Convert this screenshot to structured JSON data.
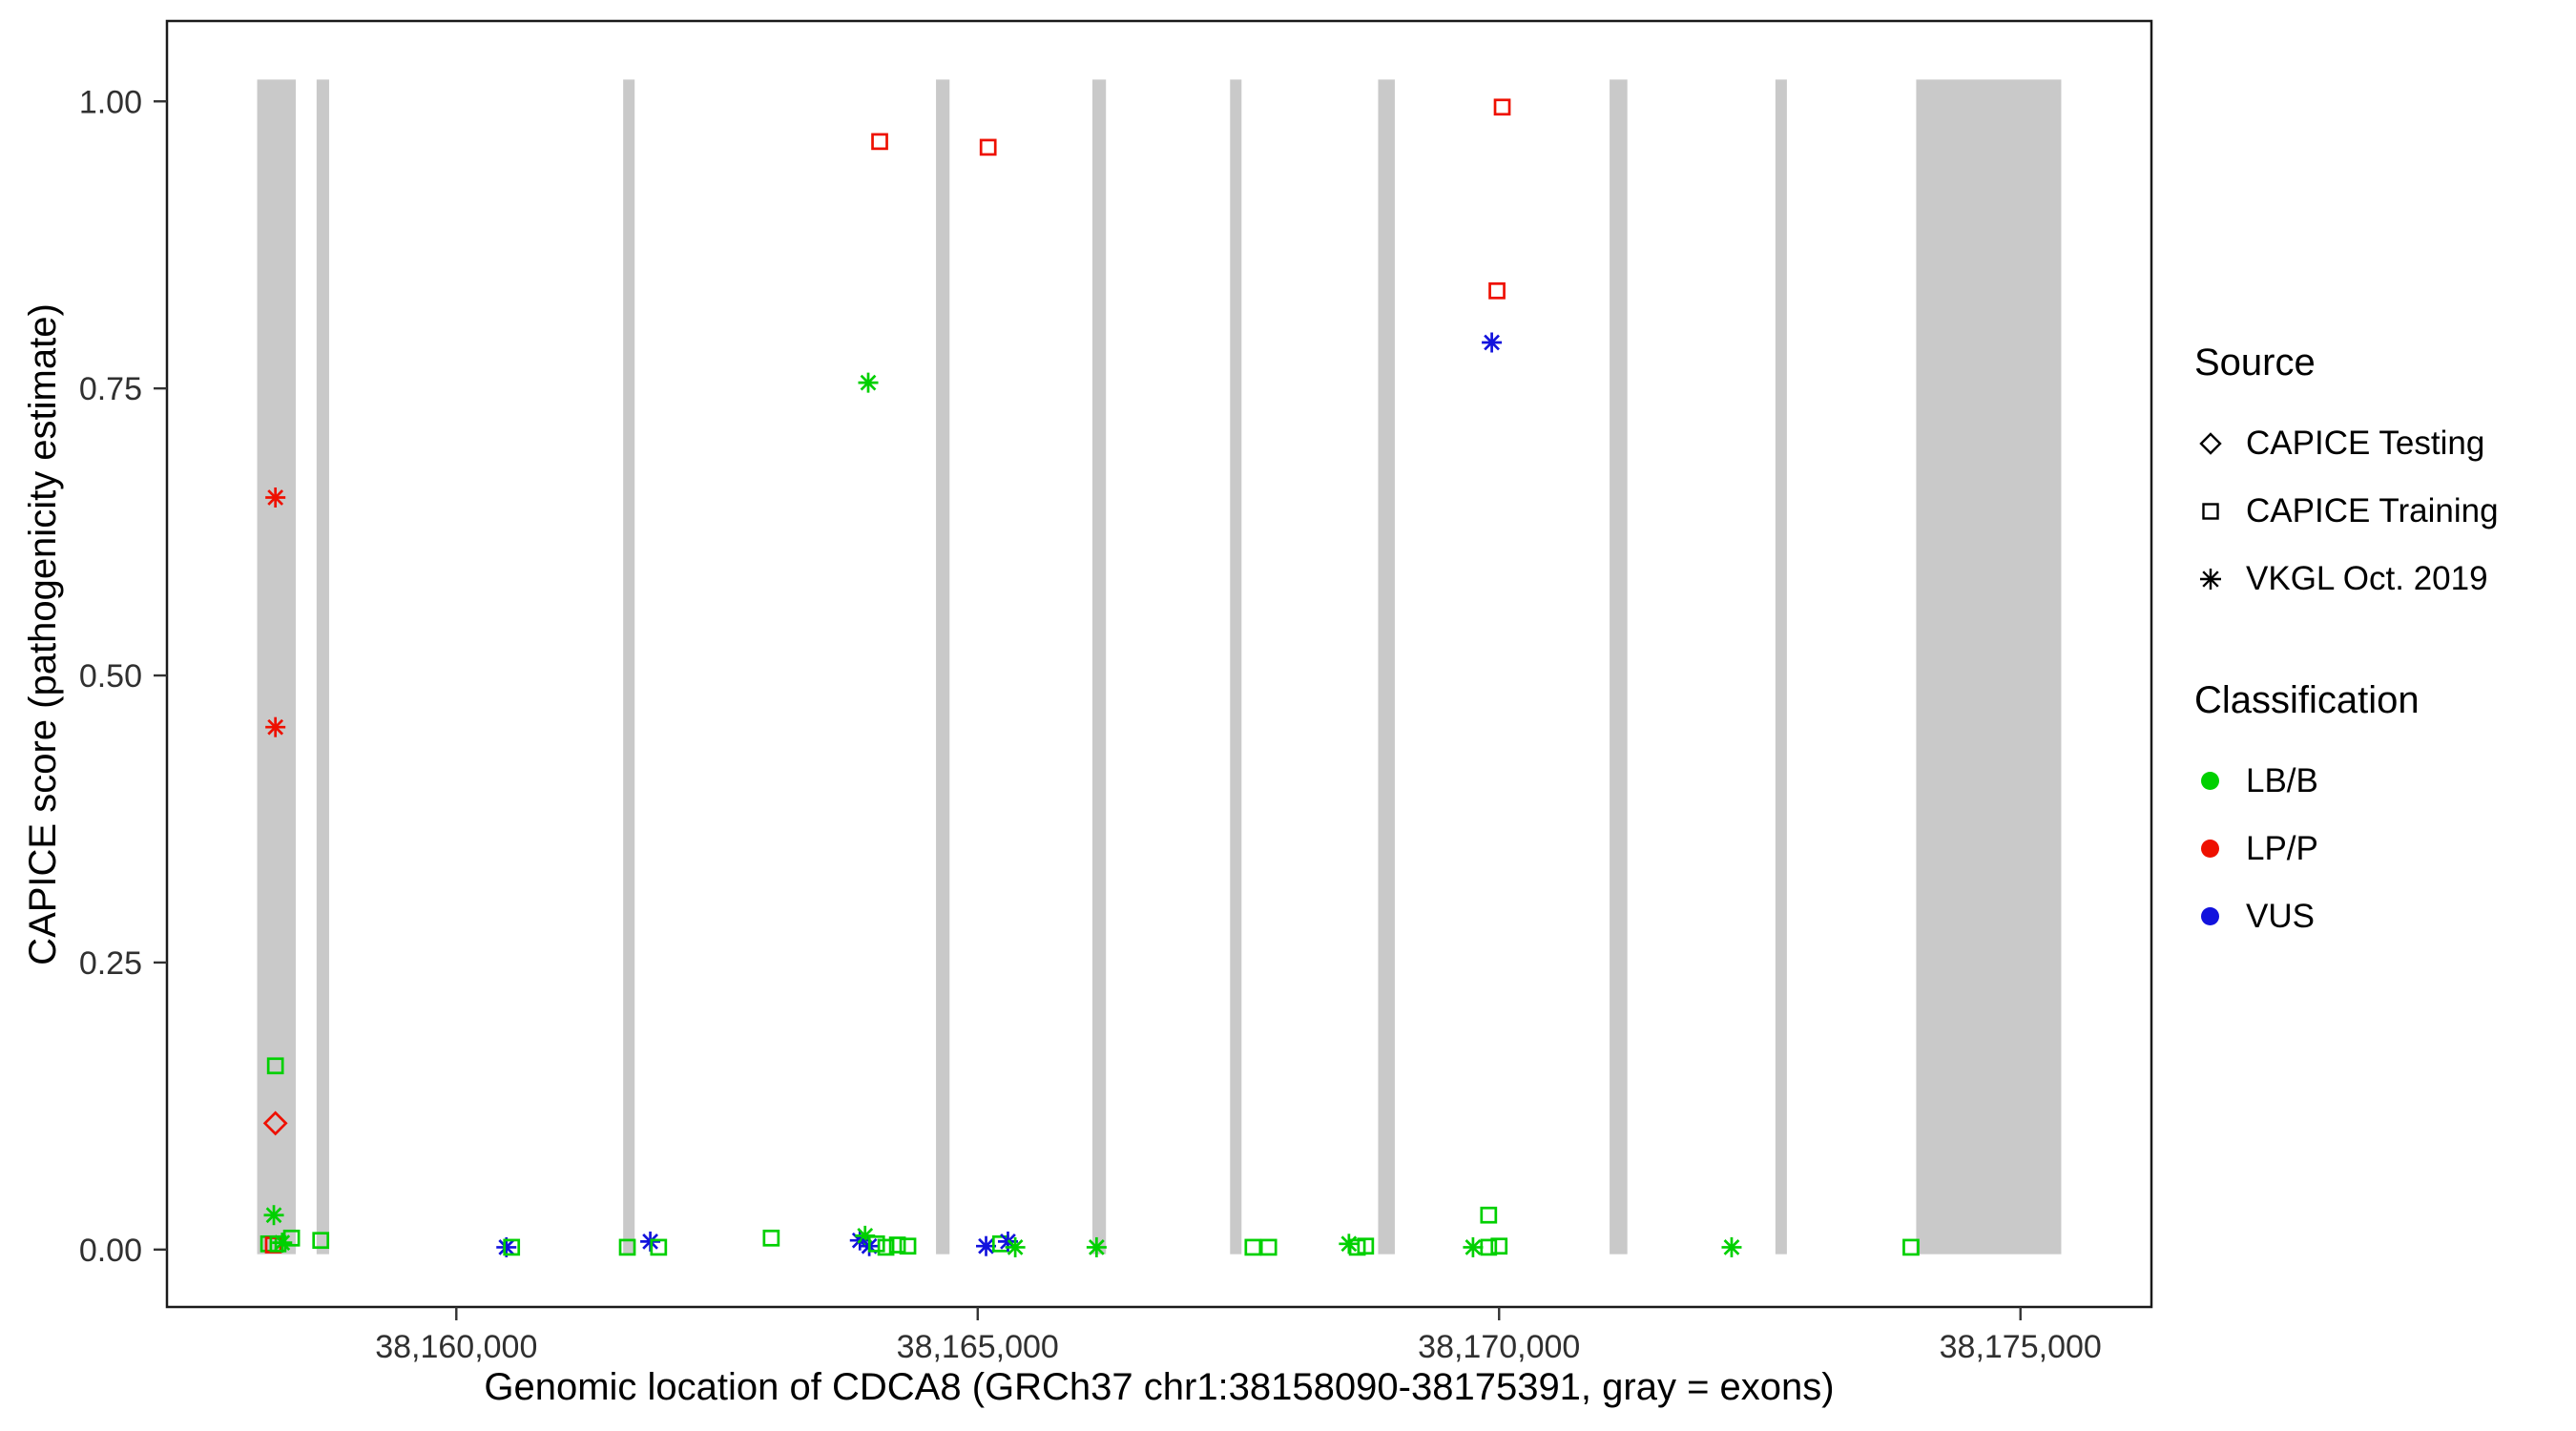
{
  "chart_data": {
    "type": "scatter",
    "title": "",
    "xlabel": "Genomic location of CDCA8 (GRCh37 chr1:38158090-38175391, gray = exons)",
    "ylabel": "CAPICE score (pathogenicity estimate)",
    "gene": {
      "name": "CDCA8",
      "build": "GRCh37",
      "region": "chr1:38158090-38175391"
    },
    "xlim": [
      38157225,
      38176256
    ],
    "ylim": [
      -0.05,
      1.07
    ],
    "x_ticks": [
      {
        "value": 38160000,
        "label": "38,160,000"
      },
      {
        "value": 38165000,
        "label": "38,165,000"
      },
      {
        "value": 38170000,
        "label": "38,170,000"
      },
      {
        "value": 38175000,
        "label": "38,175,000"
      }
    ],
    "y_ticks": [
      {
        "value": 0.0,
        "label": "0.00"
      },
      {
        "value": 0.25,
        "label": "0.25"
      },
      {
        "value": 0.5,
        "label": "0.50"
      },
      {
        "value": 0.75,
        "label": "0.75"
      },
      {
        "value": 1.0,
        "label": "1.00"
      }
    ],
    "grid": false,
    "exon_color": "#c9c9c9",
    "exons": [
      [
        38158090,
        38158460
      ],
      [
        38158660,
        38158780
      ],
      [
        38161600,
        38161710
      ],
      [
        38164600,
        38164730
      ],
      [
        38166100,
        38166230
      ],
      [
        38167420,
        38167530
      ],
      [
        38168840,
        38169000
      ],
      [
        38171060,
        38171230
      ],
      [
        38172650,
        38172760
      ],
      [
        38174000,
        38175391
      ]
    ],
    "classification_colors": {
      "LB/B": "#00d000",
      "LP/P": "#ee1000",
      "VUS": "#1212dd"
    },
    "source_shapes": {
      "CAPICE Testing": "diamond",
      "CAPICE Training": "square",
      "VKGL Oct. 2019": "asterisk"
    },
    "points": [
      {
        "x": 38158265,
        "y": 0.655,
        "source": "VKGL Oct. 2019",
        "classification": "LP/P"
      },
      {
        "x": 38158265,
        "y": 0.455,
        "source": "VKGL Oct. 2019",
        "classification": "LP/P"
      },
      {
        "x": 38158265,
        "y": 0.16,
        "source": "CAPICE Training",
        "classification": "LB/B"
      },
      {
        "x": 38158265,
        "y": 0.11,
        "source": "CAPICE Testing",
        "classification": "LP/P"
      },
      {
        "x": 38158250,
        "y": 0.03,
        "source": "VKGL Oct. 2019",
        "classification": "LB/B"
      },
      {
        "x": 38158200,
        "y": 0.005,
        "source": "CAPICE Training",
        "classification": "LB/B"
      },
      {
        "x": 38158245,
        "y": 0.004,
        "source": "CAPICE Training",
        "classification": "LP/P"
      },
      {
        "x": 38158290,
        "y": 0.005,
        "source": "CAPICE Training",
        "classification": "LB/B"
      },
      {
        "x": 38158330,
        "y": 0.006,
        "source": "VKGL Oct. 2019",
        "classification": "LB/B"
      },
      {
        "x": 38158420,
        "y": 0.01,
        "source": "CAPICE Training",
        "classification": "LB/B"
      },
      {
        "x": 38158700,
        "y": 0.008,
        "source": "CAPICE Training",
        "classification": "LB/B"
      },
      {
        "x": 38160480,
        "y": 0.002,
        "source": "VKGL Oct. 2019",
        "classification": "VUS"
      },
      {
        "x": 38160530,
        "y": 0.002,
        "source": "CAPICE Training",
        "classification": "LB/B"
      },
      {
        "x": 38161640,
        "y": 0.002,
        "source": "CAPICE Training",
        "classification": "LB/B"
      },
      {
        "x": 38161860,
        "y": 0.007,
        "source": "VKGL Oct. 2019",
        "classification": "VUS"
      },
      {
        "x": 38161940,
        "y": 0.002,
        "source": "CAPICE Training",
        "classification": "LB/B"
      },
      {
        "x": 38163020,
        "y": 0.01,
        "source": "CAPICE Training",
        "classification": "LB/B"
      },
      {
        "x": 38163950,
        "y": 0.755,
        "source": "VKGL Oct. 2019",
        "classification": "LB/B"
      },
      {
        "x": 38164060,
        "y": 0.965,
        "source": "CAPICE Training",
        "classification": "LP/P"
      },
      {
        "x": 38163870,
        "y": 0.008,
        "source": "VKGL Oct. 2019",
        "classification": "VUS"
      },
      {
        "x": 38163920,
        "y": 0.012,
        "source": "VKGL Oct. 2019",
        "classification": "LB/B"
      },
      {
        "x": 38163960,
        "y": 0.003,
        "source": "VKGL Oct. 2019",
        "classification": "VUS"
      },
      {
        "x": 38164030,
        "y": 0.005,
        "source": "CAPICE Training",
        "classification": "LB/B"
      },
      {
        "x": 38164120,
        "y": 0.002,
        "source": "CAPICE Training",
        "classification": "LB/B"
      },
      {
        "x": 38164230,
        "y": 0.004,
        "source": "CAPICE Training",
        "classification": "LB/B"
      },
      {
        "x": 38164330,
        "y": 0.003,
        "source": "CAPICE Training",
        "classification": "LB/B"
      },
      {
        "x": 38165100,
        "y": 0.96,
        "source": "CAPICE Training",
        "classification": "LP/P"
      },
      {
        "x": 38165080,
        "y": 0.003,
        "source": "VKGL Oct. 2019",
        "classification": "VUS"
      },
      {
        "x": 38165220,
        "y": 0.005,
        "source": "CAPICE Training",
        "classification": "LB/B"
      },
      {
        "x": 38165290,
        "y": 0.007,
        "source": "VKGL Oct. 2019",
        "classification": "VUS"
      },
      {
        "x": 38165360,
        "y": 0.002,
        "source": "VKGL Oct. 2019",
        "classification": "LB/B"
      },
      {
        "x": 38166140,
        "y": 0.002,
        "source": "VKGL Oct. 2019",
        "classification": "LB/B"
      },
      {
        "x": 38167640,
        "y": 0.002,
        "source": "CAPICE Training",
        "classification": "LB/B"
      },
      {
        "x": 38167790,
        "y": 0.002,
        "source": "CAPICE Training",
        "classification": "LB/B"
      },
      {
        "x": 38168560,
        "y": 0.005,
        "source": "VKGL Oct. 2019",
        "classification": "LB/B"
      },
      {
        "x": 38168640,
        "y": 0.002,
        "source": "CAPICE Training",
        "classification": "LB/B"
      },
      {
        "x": 38168720,
        "y": 0.003,
        "source": "CAPICE Training",
        "classification": "LB/B"
      },
      {
        "x": 38169750,
        "y": 0.002,
        "source": "VKGL Oct. 2019",
        "classification": "LB/B"
      },
      {
        "x": 38169900,
        "y": 0.03,
        "source": "CAPICE Training",
        "classification": "LB/B"
      },
      {
        "x": 38169900,
        "y": 0.002,
        "source": "CAPICE Training",
        "classification": "LB/B"
      },
      {
        "x": 38170000,
        "y": 0.003,
        "source": "CAPICE Training",
        "classification": "LB/B"
      },
      {
        "x": 38169980,
        "y": 0.835,
        "source": "CAPICE Training",
        "classification": "LP/P"
      },
      {
        "x": 38169930,
        "y": 0.79,
        "source": "VKGL Oct. 2019",
        "classification": "VUS"
      },
      {
        "x": 38170030,
        "y": 0.995,
        "source": "CAPICE Training",
        "classification": "LP/P"
      },
      {
        "x": 38172230,
        "y": 0.002,
        "source": "VKGL Oct. 2019",
        "classification": "LB/B"
      },
      {
        "x": 38173950,
        "y": 0.002,
        "source": "CAPICE Training",
        "classification": "LB/B"
      }
    ],
    "legend": {
      "position": "right",
      "source": {
        "title": "Source",
        "items": [
          {
            "label": "CAPICE Testing",
            "shape": "diamond"
          },
          {
            "label": "CAPICE Training",
            "shape": "square"
          },
          {
            "label": "VKGL Oct. 2019",
            "shape": "asterisk"
          }
        ]
      },
      "classification": {
        "title": "Classification",
        "items": [
          {
            "label": "LB/B",
            "color": "#00d000"
          },
          {
            "label": "LP/P",
            "color": "#ee1000"
          },
          {
            "label": "VUS",
            "color": "#1212dd"
          }
        ]
      }
    }
  }
}
